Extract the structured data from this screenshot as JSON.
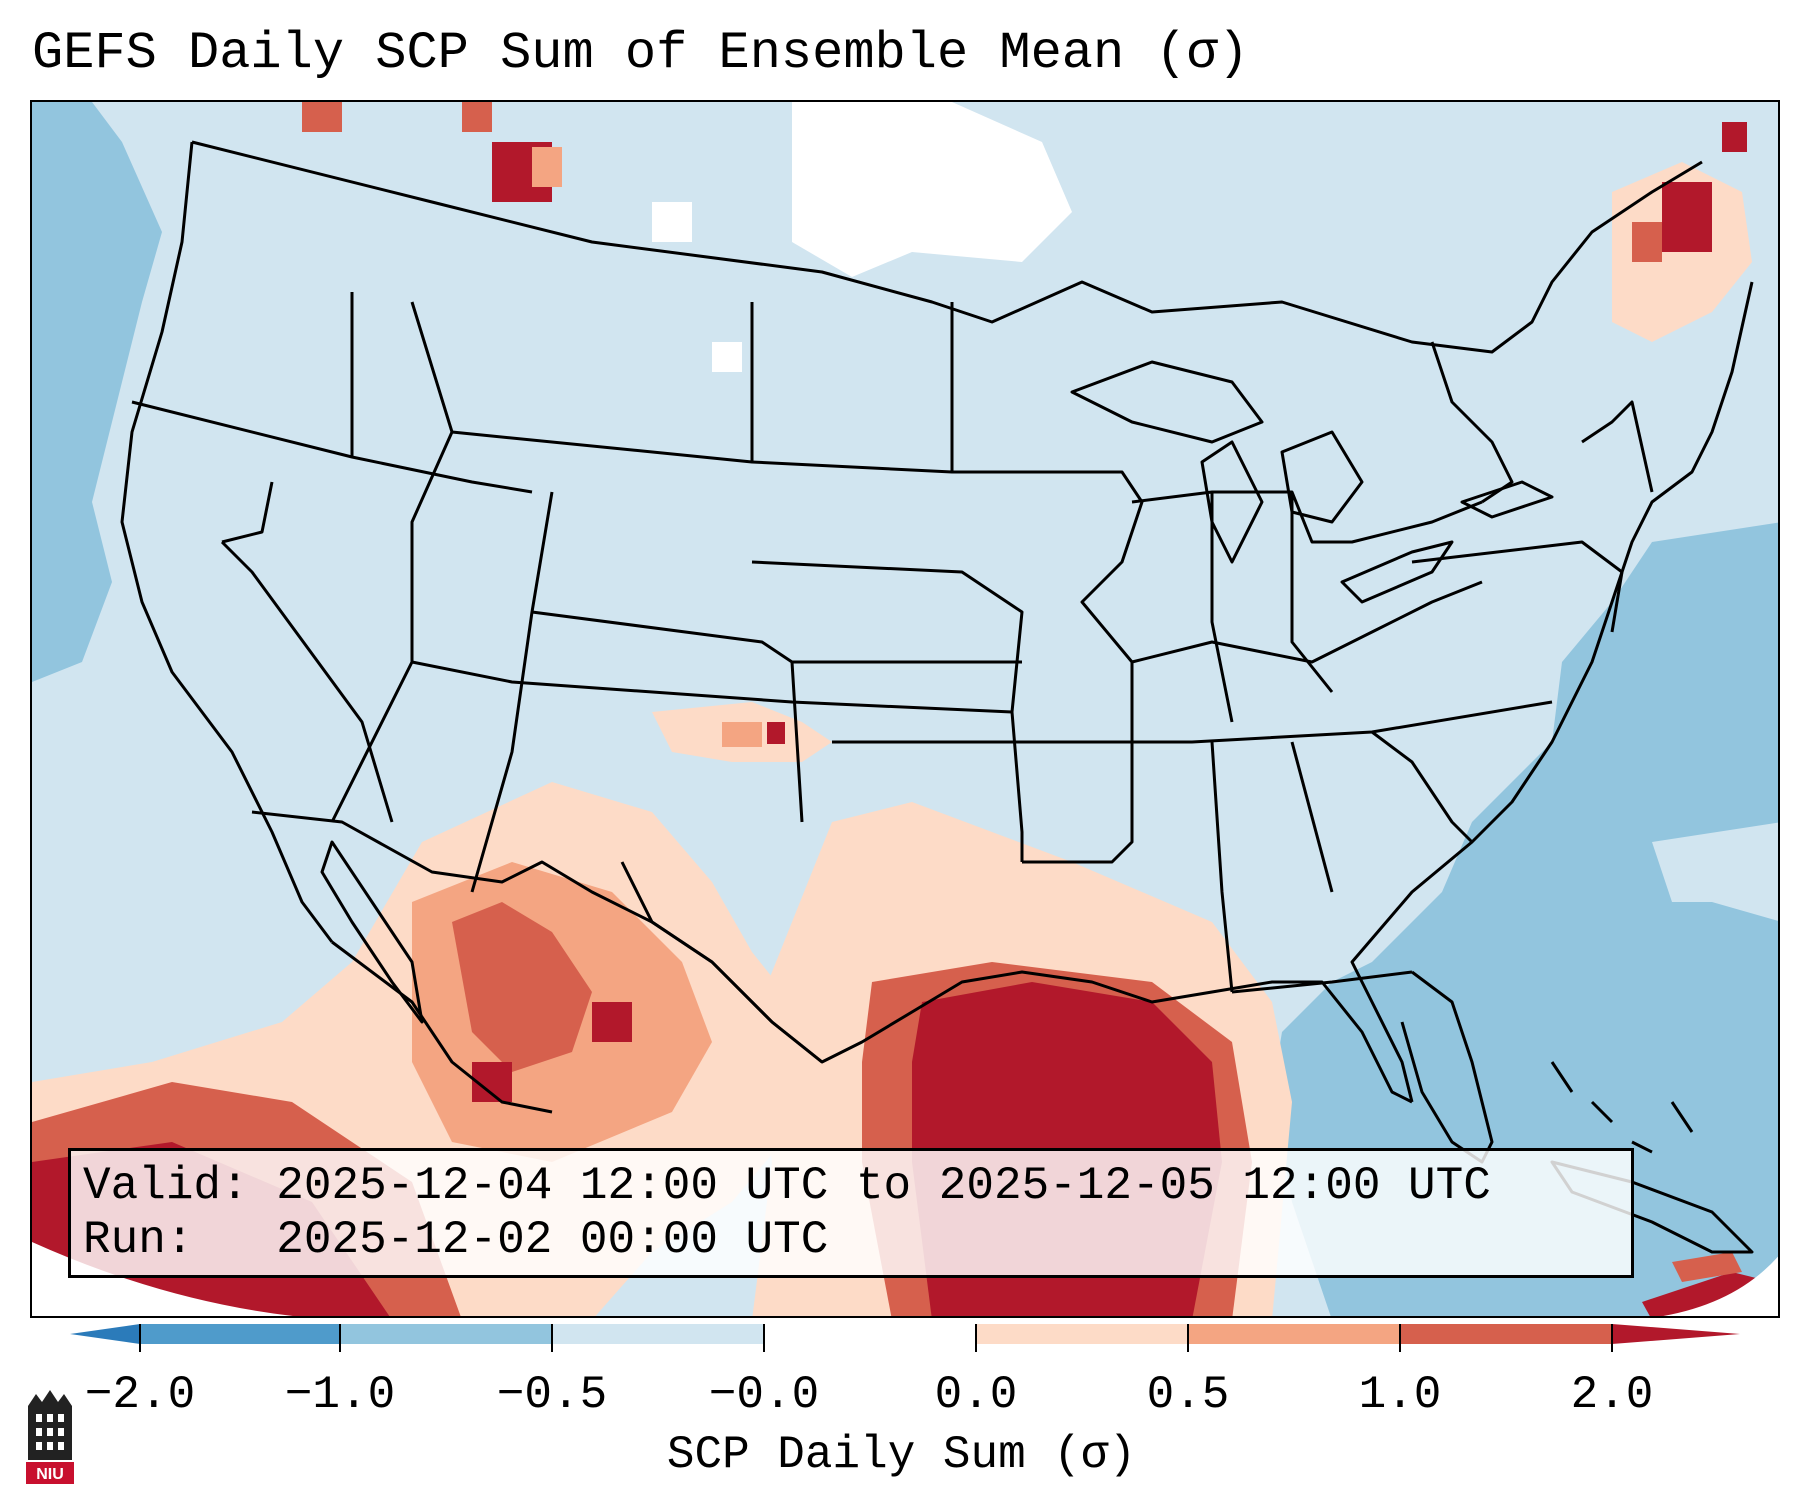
{
  "title": "GEFS Daily SCP Sum of Ensemble Mean (σ)",
  "info": {
    "valid_label": "Valid:",
    "valid_value": "2025-12-04 12:00 UTC to 2025-12-05 12:00 UTC",
    "run_label": "Run:",
    "run_value": "2025-12-02 00:00 UTC"
  },
  "colorbar": {
    "label": "SCP Daily Sum (σ)",
    "ticks": [
      "−2.0",
      "−1.0",
      "−0.5",
      "−0.0",
      "0.0",
      "0.5",
      "1.0",
      "2.0"
    ],
    "colors": {
      "below_min": "#2b7bba",
      "neg_2_to_1": "#4f9bcb",
      "neg_1_to_05": "#92c5de",
      "neg_05_to_0": "#d1e5f0",
      "zero": "#ffffff",
      "pos_0_to_05": "#fddbc7",
      "pos_05_to_1": "#f4a582",
      "pos_1_to_2": "#d6604d",
      "above_max": "#b2182b"
    }
  },
  "logo": {
    "text": "NIU"
  }
}
